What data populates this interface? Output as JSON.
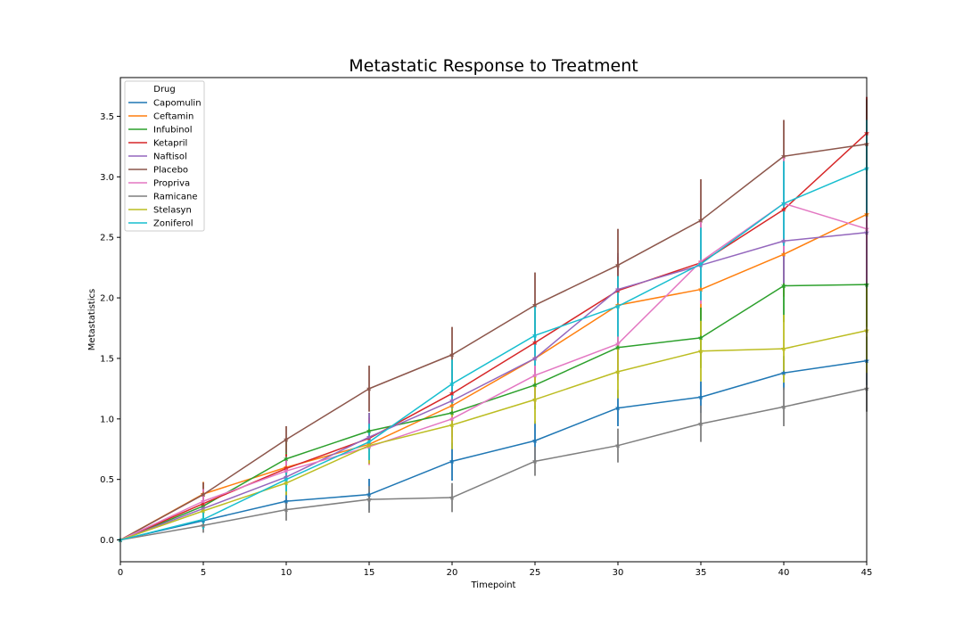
{
  "chart_data": {
    "type": "line",
    "title": "Metastatic Response to Treatment",
    "xlabel": "Timepoint",
    "ylabel": "Metastatistics",
    "xlim": [
      0,
      45
    ],
    "ylim": [
      -0.18,
      3.82
    ],
    "x": [
      0,
      5,
      10,
      15,
      20,
      25,
      30,
      35,
      40,
      45
    ],
    "x_ticks": [
      0,
      5,
      10,
      15,
      20,
      25,
      30,
      35,
      40,
      45
    ],
    "y_ticks": [
      0.0,
      0.5,
      1.0,
      1.5,
      2.0,
      2.5,
      3.0,
      3.5
    ],
    "y_tick_labels": [
      "0.0",
      "0.5",
      "1.0",
      "1.5",
      "2.0",
      "2.5",
      "3.0",
      "3.5"
    ],
    "grid": false,
    "legend": {
      "title": "Drug",
      "placement": "top-left"
    },
    "series": [
      {
        "name": "Capomulin",
        "color": "#1f77b4",
        "values": [
          0,
          0.16,
          0.32,
          0.375,
          0.65,
          0.82,
          1.09,
          1.18,
          1.38,
          1.48
        ],
        "errors": [
          0,
          0.07,
          0.08,
          0.13,
          0.16,
          0.16,
          0.15,
          0.13,
          0.14,
          0.2
        ]
      },
      {
        "name": "Ceftamin",
        "color": "#ff7f0e",
        "values": [
          0,
          0.38,
          0.6,
          0.79,
          1.11,
          1.5,
          1.94,
          2.07,
          2.36,
          2.69
        ],
        "errors": [
          0,
          0.1,
          0.1,
          0.17,
          0.2,
          0.25,
          0.25,
          0.25,
          0.35,
          0.4
        ]
      },
      {
        "name": "Infubinol",
        "color": "#2ca02c",
        "values": [
          0,
          0.28,
          0.67,
          0.9,
          1.05,
          1.28,
          1.59,
          1.67,
          2.1,
          2.11
        ],
        "errors": [
          0,
          0.1,
          0.15,
          0.15,
          0.2,
          0.2,
          0.25,
          0.25,
          0.3,
          0.35
        ]
      },
      {
        "name": "Ketapril",
        "color": "#d62728",
        "values": [
          0,
          0.3,
          0.59,
          0.84,
          1.21,
          1.63,
          2.06,
          2.29,
          2.73,
          3.36
        ],
        "errors": [
          0,
          0.1,
          0.12,
          0.17,
          0.2,
          0.25,
          0.28,
          0.3,
          0.35,
          0.3
        ]
      },
      {
        "name": "Naftisol",
        "color": "#9467bd",
        "values": [
          0,
          0.26,
          0.52,
          0.85,
          1.15,
          1.5,
          2.07,
          2.27,
          2.47,
          2.54
        ],
        "errors": [
          0,
          0.1,
          0.12,
          0.2,
          0.25,
          0.3,
          0.3,
          0.3,
          0.35,
          0.4
        ]
      },
      {
        "name": "Placebo",
        "color": "#8c564b",
        "values": [
          0,
          0.375,
          0.83,
          1.25,
          1.53,
          1.94,
          2.27,
          2.64,
          3.17,
          3.27
        ],
        "errors": [
          0,
          0.1,
          0.11,
          0.19,
          0.23,
          0.27,
          0.3,
          0.34,
          0.3,
          0.37
        ]
      },
      {
        "name": "Propriva",
        "color": "#e377c2",
        "values": [
          0,
          0.32,
          0.57,
          0.77,
          1.0,
          1.36,
          1.62,
          2.3,
          2.78,
          2.57
        ],
        "errors": [
          0,
          0.1,
          0.12,
          0.15,
          0.2,
          0.25,
          0.3,
          0.35,
          0.4,
          0.45
        ]
      },
      {
        "name": "Ramicane",
        "color": "#7f7f7f",
        "values": [
          0,
          0.12,
          0.25,
          0.335,
          0.35,
          0.65,
          0.78,
          0.96,
          1.1,
          1.25
        ],
        "errors": [
          0,
          0.06,
          0.09,
          0.11,
          0.12,
          0.12,
          0.14,
          0.15,
          0.16,
          0.19
        ]
      },
      {
        "name": "Stelasyn",
        "color": "#bcbd22",
        "values": [
          0,
          0.24,
          0.47,
          0.78,
          0.95,
          1.16,
          1.39,
          1.56,
          1.58,
          1.73
        ],
        "errors": [
          0,
          0.09,
          0.1,
          0.15,
          0.2,
          0.2,
          0.22,
          0.25,
          0.28,
          0.35
        ]
      },
      {
        "name": "Zoniferol",
        "color": "#17becf",
        "values": [
          0,
          0.17,
          0.5,
          0.81,
          1.29,
          1.69,
          1.93,
          2.28,
          2.78,
          3.07
        ],
        "errors": [
          0,
          0.08,
          0.1,
          0.15,
          0.2,
          0.25,
          0.25,
          0.3,
          0.35,
          0.4
        ]
      }
    ]
  }
}
